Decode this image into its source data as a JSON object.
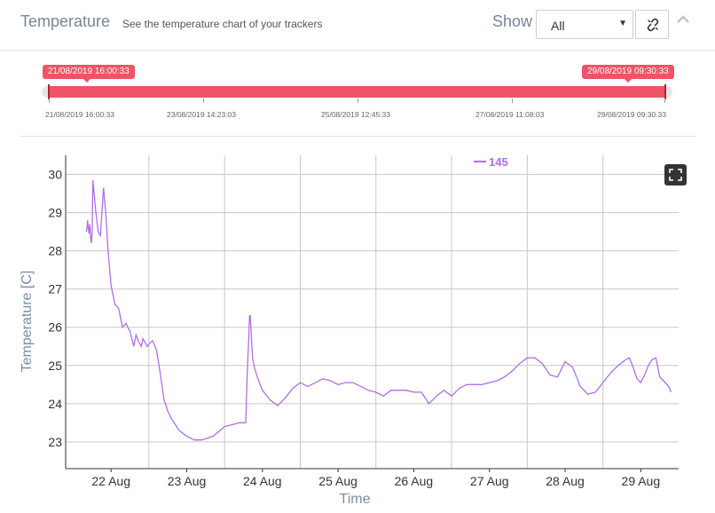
{
  "header": {
    "title": "Temperature",
    "subtitle": "See the temperature chart of your trackers",
    "show_label": "Show",
    "select_value": "All",
    "icons": [
      "unlink-icon",
      "chevron-up-icon"
    ]
  },
  "range": {
    "start_label": "21/08/2019 16:00:33",
    "end_label": "29/08/2019 09:30:33",
    "fill_color": "#ef5366",
    "tick_labels": [
      "21/08/2019 16:00:33",
      "23/08/2019 14:23:03",
      "25/08/2019 12:45:33",
      "27/08/2019 11:08:03",
      "29/08/2019 09:30:33"
    ],
    "selected_fraction": [
      0,
      1
    ]
  },
  "chart_data": {
    "type": "line",
    "xlabel": "Time",
    "ylabel": "Temperature [C]",
    "xlim": [
      21.4,
      29.5
    ],
    "ylim": [
      22.3,
      30.5
    ],
    "x_tick_values": [
      22,
      23,
      24,
      25,
      26,
      27,
      28,
      29
    ],
    "x_tick_labels": [
      "22 Aug",
      "23 Aug",
      "24 Aug",
      "25 Aug",
      "26 Aug",
      "27 Aug",
      "28 Aug",
      "29 Aug"
    ],
    "y_ticks": [
      23,
      24,
      25,
      26,
      27,
      28,
      29,
      30
    ],
    "grid": true,
    "legend_position": "top-center",
    "color": "#b06ee6",
    "series": [
      {
        "name": "145",
        "x": [
          21.67,
          21.68,
          21.69,
          21.7,
          21.71,
          21.72,
          21.73,
          21.74,
          21.75,
          21.76,
          21.8,
          21.83,
          21.86,
          21.9,
          21.93,
          21.96,
          22.0,
          22.05,
          22.1,
          22.15,
          22.2,
          22.22,
          22.25,
          22.3,
          22.33,
          22.37,
          22.4,
          22.42,
          22.45,
          22.48,
          22.52,
          22.55,
          22.6,
          22.65,
          22.7,
          22.75,
          22.8,
          22.9,
          23.0,
          23.1,
          23.2,
          23.35,
          23.5,
          23.6,
          23.7,
          23.78,
          23.8,
          23.82,
          23.83,
          23.84,
          23.85,
          23.87,
          23.9,
          23.95,
          24.0,
          24.1,
          24.2,
          24.3,
          24.4,
          24.5,
          24.6,
          24.7,
          24.8,
          24.9,
          25.0,
          25.1,
          25.2,
          25.3,
          25.4,
          25.5,
          25.6,
          25.7,
          25.8,
          25.9,
          26.0,
          26.1,
          26.2,
          26.3,
          26.4,
          26.5,
          26.6,
          26.7,
          26.8,
          26.9,
          27.0,
          27.1,
          27.2,
          27.3,
          27.4,
          27.5,
          27.6,
          27.7,
          27.8,
          27.9,
          28.0,
          28.1,
          28.2,
          28.3,
          28.4,
          28.5,
          28.6,
          28.7,
          28.8,
          28.85,
          28.9,
          28.95,
          29.0,
          29.05,
          29.1,
          29.15,
          29.2,
          29.25,
          29.3,
          29.35,
          29.38,
          29.4
        ],
        "y": [
          28.5,
          28.55,
          28.8,
          28.6,
          28.45,
          28.7,
          28.35,
          28.2,
          28.5,
          29.85,
          29.0,
          28.5,
          28.4,
          29.65,
          29.0,
          28.0,
          27.1,
          26.6,
          26.5,
          26.0,
          26.1,
          26.0,
          25.9,
          25.5,
          25.8,
          25.6,
          25.5,
          25.7,
          25.6,
          25.5,
          25.6,
          25.65,
          25.4,
          24.8,
          24.1,
          23.8,
          23.6,
          23.3,
          23.15,
          23.05,
          23.05,
          23.15,
          23.4,
          23.45,
          23.5,
          23.5,
          24.8,
          25.7,
          26.3,
          26.3,
          25.9,
          25.2,
          24.9,
          24.6,
          24.35,
          24.1,
          23.95,
          24.15,
          24.4,
          24.55,
          24.45,
          24.55,
          24.65,
          24.6,
          24.5,
          24.55,
          24.55,
          24.45,
          24.35,
          24.3,
          24.2,
          24.35,
          24.35,
          24.35,
          24.3,
          24.3,
          24.0,
          24.2,
          24.35,
          24.2,
          24.4,
          24.5,
          24.5,
          24.5,
          24.55,
          24.6,
          24.7,
          24.85,
          25.05,
          25.2,
          25.2,
          25.05,
          24.75,
          24.7,
          25.1,
          24.95,
          24.45,
          24.25,
          24.3,
          24.55,
          24.8,
          25.0,
          25.15,
          25.2,
          24.95,
          24.65,
          24.55,
          24.75,
          25.0,
          25.15,
          25.2,
          24.7,
          24.6,
          24.5,
          24.4,
          24.3
        ]
      }
    ]
  }
}
